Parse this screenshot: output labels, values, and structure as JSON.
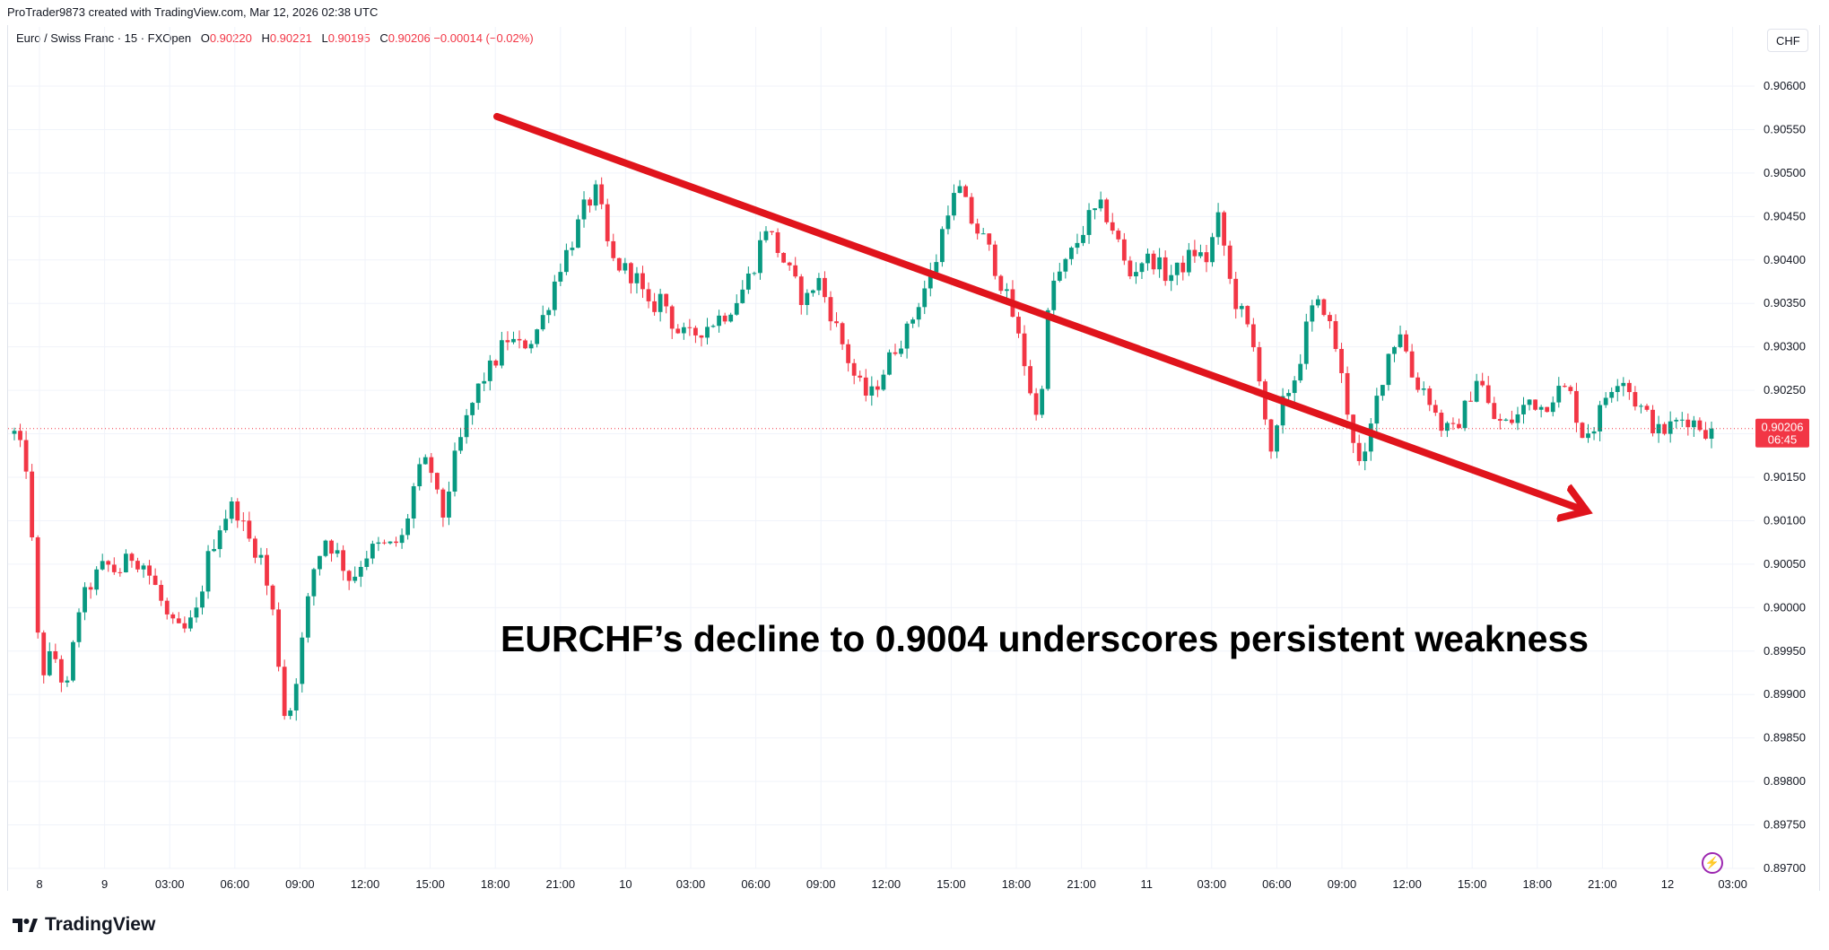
{
  "header": {
    "credit": "ProTrader9873 created with TradingView.com, Mar 12, 2026 02:38 UTC"
  },
  "symbol": {
    "name": "Euro / Swiss Franc · 15 · FXOpen",
    "open_label": "O",
    "open": "0.90220",
    "high_label": "H",
    "high": "0.90221",
    "low_label": "L",
    "low": "0.90195",
    "close_label": "C",
    "close": "0.90206",
    "change": "−0.00014 (−0.02%)"
  },
  "currency_button": "CHF",
  "price_tag": {
    "price": "0.90206",
    "countdown": "06:45"
  },
  "headline": "EURCHF’s decline to 0.9004 underscores persistent weakness",
  "footer": {
    "brand": "TradingView"
  },
  "colors": {
    "up": "#089981",
    "down": "#f23645",
    "arrow": "#e0141c",
    "grid": "#f0f3fa"
  },
  "chart_data": {
    "type": "candlestick",
    "instrument": "EURCHF",
    "timeframe": "15",
    "y_ticks": [
      "0.90600",
      "0.90550",
      "0.90500",
      "0.90450",
      "0.90400",
      "0.90350",
      "0.90300",
      "0.90250",
      "0.90200",
      "0.90150",
      "0.90100",
      "0.90050",
      "0.90000",
      "0.89950",
      "0.89900",
      "0.89850",
      "0.89800",
      "0.89750",
      "0.89700"
    ],
    "ylim": [
      0.897,
      0.9063
    ],
    "x_ticks": [
      "8",
      "9",
      "03:00",
      "06:00",
      "09:00",
      "12:00",
      "15:00",
      "18:00",
      "21:00",
      "10",
      "03:00",
      "06:00",
      "09:00",
      "12:00",
      "15:00",
      "18:00",
      "21:00",
      "11",
      "03:00",
      "06:00",
      "09:00",
      "12:00",
      "15:00",
      "18:00",
      "21:00",
      "12",
      "03:00"
    ],
    "last_price": 0.90206,
    "trend_arrow": {
      "from": 0.90565,
      "to": 0.90112,
      "direction": "down"
    },
    "path_points": [
      0.902,
      0.9016,
      0.8992,
      0.8995,
      0.899,
      0.9,
      0.9003,
      0.9005,
      0.9004,
      0.9006,
      0.9005,
      0.9002,
      0.8998,
      0.8997,
      0.8999,
      0.9006,
      0.901,
      0.9012,
      0.9008,
      0.9006,
      0.8999,
      0.8986,
      0.8994,
      0.9004,
      0.9008,
      0.9006,
      0.9003,
      0.9006,
      0.9007,
      0.9007,
      0.9008,
      0.9015,
      0.9017,
      0.901,
      0.9017,
      0.9022,
      0.9026,
      0.9028,
      0.9031,
      0.903,
      0.9031,
      0.9034,
      0.9039,
      0.9042,
      0.9046,
      0.9048,
      0.904,
      0.9039,
      0.9038,
      0.9034,
      0.9036,
      0.9032,
      0.9031,
      0.9032,
      0.9033,
      0.9034,
      0.9036,
      0.9039,
      0.9044,
      0.9041,
      0.9038,
      0.9035,
      0.9038,
      0.9034,
      0.903,
      0.9026,
      0.9024,
      0.9027,
      0.903,
      0.9032,
      0.9036,
      0.9039,
      0.9046,
      0.9048,
      0.9044,
      0.9042,
      0.9038,
      0.9034,
      0.9028,
      0.9021,
      0.9037,
      0.9039,
      0.9042,
      0.9045,
      0.9046,
      0.9043,
      0.9038,
      0.904,
      0.904,
      0.9038,
      0.9039,
      0.9041,
      0.904,
      0.9045,
      0.9036,
      0.9033,
      0.9028,
      0.9017,
      0.9024,
      0.9027,
      0.9034,
      0.9035,
      0.903,
      0.9022,
      0.9015,
      0.9023,
      0.9029,
      0.9032,
      0.9026,
      0.9025,
      0.9021,
      0.902,
      0.9023,
      0.9027,
      0.9022,
      0.9021,
      0.9022,
      0.9024,
      0.9023,
      0.9025,
      0.9025,
      0.902,
      0.9021,
      0.9025,
      0.9027,
      0.9024,
      0.9022,
      0.902,
      0.9021,
      0.9022,
      0.9021,
      0.902
    ]
  }
}
